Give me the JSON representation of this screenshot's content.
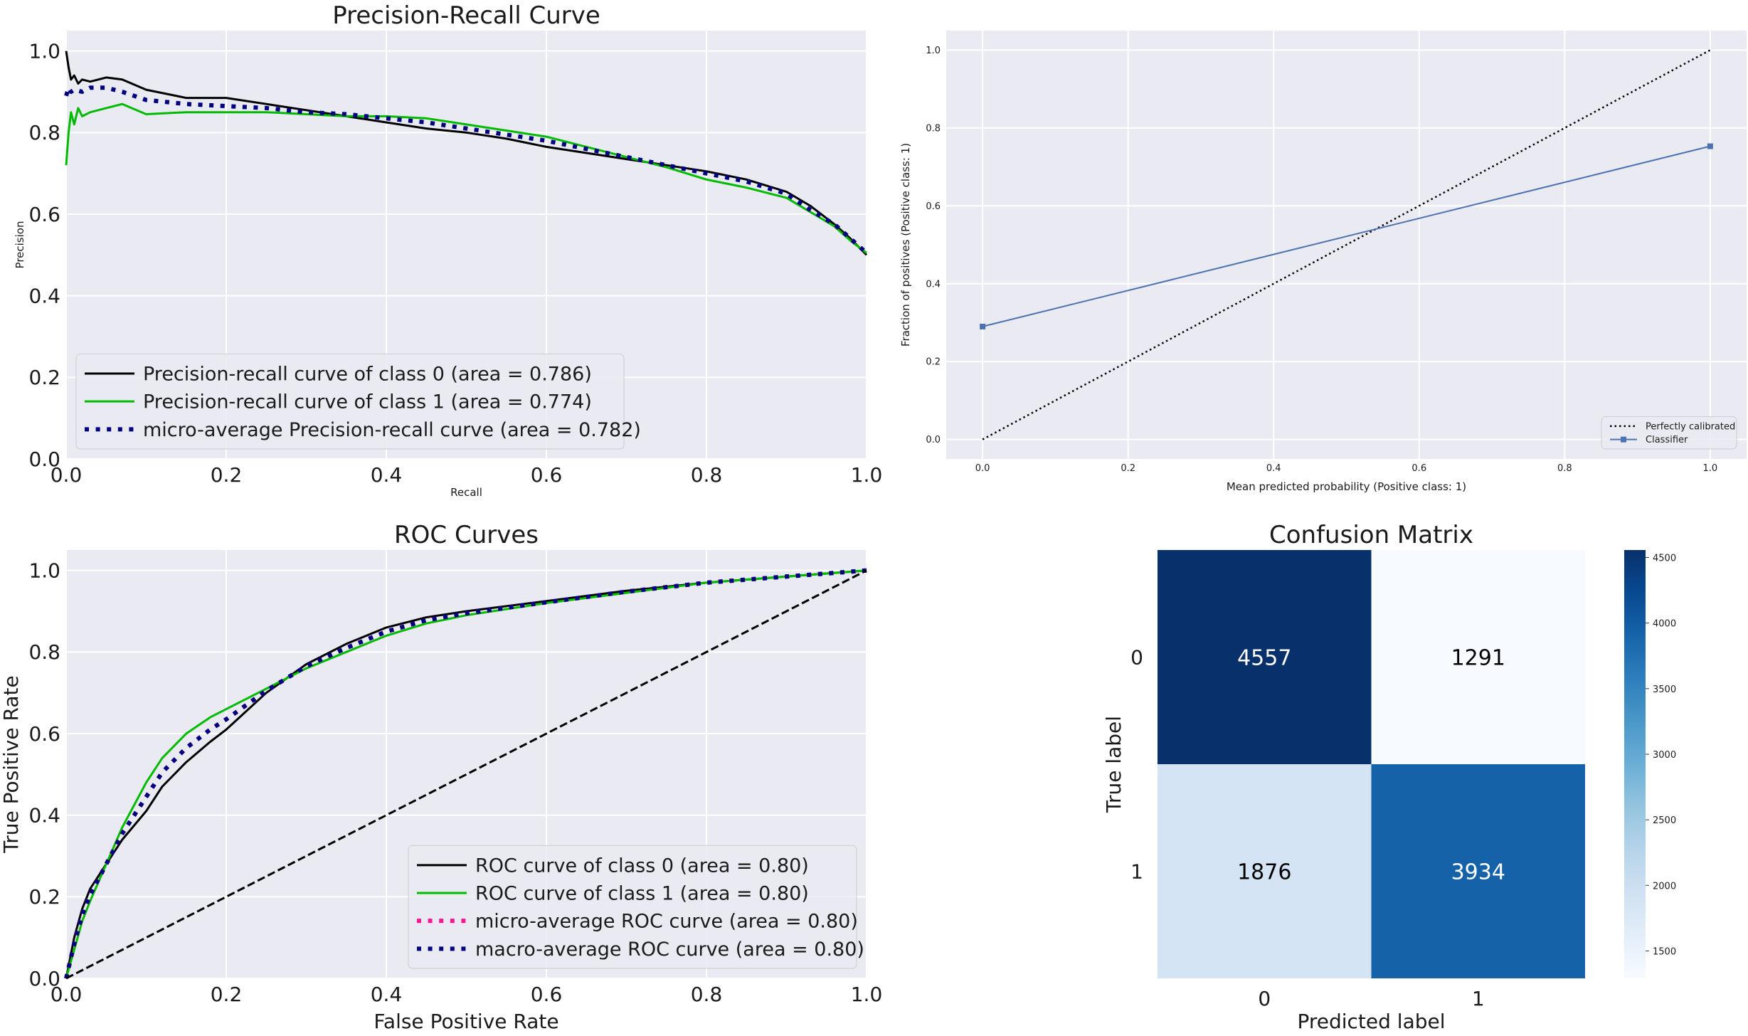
{
  "chart_data": [
    {
      "type": "line",
      "title": "Precision-Recall Curve",
      "xlabel": "Recall",
      "ylabel": "Precision",
      "xlim": [
        0,
        1
      ],
      "ylim": [
        0,
        1.05
      ],
      "xticks": [
        0,
        0.2,
        0.4,
        0.6,
        0.8,
        1.0
      ],
      "yticks": [
        0,
        0.2,
        0.4,
        0.6,
        0.8,
        1.0
      ],
      "grid": true,
      "legend_position": "lower-left",
      "series": [
        {
          "name": "Precision-recall curve of class 0 (area = 0.786)",
          "color": "#000000",
          "style": "solid",
          "x": [
            0,
            0.003,
            0.006,
            0.01,
            0.015,
            0.02,
            0.03,
            0.05,
            0.07,
            0.1,
            0.15,
            0.2,
            0.25,
            0.3,
            0.35,
            0.4,
            0.45,
            0.5,
            0.55,
            0.6,
            0.65,
            0.7,
            0.75,
            0.8,
            0.85,
            0.9,
            0.93,
            0.96,
            0.98,
            1.0
          ],
          "y": [
            1.0,
            0.96,
            0.93,
            0.94,
            0.92,
            0.93,
            0.925,
            0.935,
            0.93,
            0.905,
            0.885,
            0.885,
            0.87,
            0.855,
            0.84,
            0.825,
            0.81,
            0.8,
            0.785,
            0.765,
            0.75,
            0.735,
            0.72,
            0.705,
            0.685,
            0.655,
            0.62,
            0.575,
            0.54,
            0.5
          ]
        },
        {
          "name": "Precision-recall curve of class 1 (area = 0.774)",
          "color": "#00bb00",
          "style": "solid",
          "x": [
            0,
            0.003,
            0.006,
            0.01,
            0.015,
            0.02,
            0.03,
            0.05,
            0.07,
            0.1,
            0.15,
            0.2,
            0.25,
            0.3,
            0.35,
            0.4,
            0.45,
            0.5,
            0.55,
            0.6,
            0.65,
            0.7,
            0.75,
            0.8,
            0.85,
            0.9,
            0.93,
            0.96,
            0.98,
            1.0
          ],
          "y": [
            0.72,
            0.8,
            0.85,
            0.82,
            0.86,
            0.84,
            0.85,
            0.86,
            0.87,
            0.845,
            0.85,
            0.85,
            0.85,
            0.845,
            0.84,
            0.84,
            0.835,
            0.82,
            0.805,
            0.79,
            0.765,
            0.74,
            0.715,
            0.685,
            0.665,
            0.64,
            0.605,
            0.57,
            0.535,
            0.505
          ]
        },
        {
          "name": "micro-average Precision-recall curve (area = 0.782)",
          "color": "#000080",
          "style": "dotted",
          "x": [
            0,
            0.003,
            0.006,
            0.01,
            0.02,
            0.03,
            0.05,
            0.07,
            0.1,
            0.15,
            0.2,
            0.25,
            0.3,
            0.35,
            0.4,
            0.45,
            0.5,
            0.55,
            0.6,
            0.65,
            0.7,
            0.75,
            0.8,
            0.85,
            0.9,
            0.93,
            0.96,
            0.98,
            1.0
          ],
          "y": [
            0.89,
            0.91,
            0.9,
            0.905,
            0.9,
            0.91,
            0.91,
            0.9,
            0.88,
            0.87,
            0.865,
            0.86,
            0.85,
            0.845,
            0.835,
            0.825,
            0.81,
            0.795,
            0.78,
            0.76,
            0.74,
            0.72,
            0.7,
            0.68,
            0.65,
            0.61,
            0.575,
            0.54,
            0.505
          ]
        }
      ]
    },
    {
      "type": "line",
      "title": "",
      "xlabel": "Mean predicted probability (Positive class: 1)",
      "ylabel": "Fraction of positives (Positive class: 1)",
      "xlim": [
        -0.05,
        1.05
      ],
      "ylim": [
        -0.05,
        1.05
      ],
      "xticks": [
        0.0,
        0.2,
        0.4,
        0.6,
        0.8,
        1.0
      ],
      "yticks": [
        0.0,
        0.2,
        0.4,
        0.6,
        0.8,
        1.0
      ],
      "grid": true,
      "legend_position": "lower-right",
      "series": [
        {
          "name": "Perfectly calibrated",
          "color": "#000000",
          "style": "dotted",
          "x": [
            0,
            1
          ],
          "y": [
            0,
            1
          ]
        },
        {
          "name": "Classifier",
          "color": "#4c72b0",
          "style": "solid",
          "marker": "square",
          "x": [
            0.0,
            1.0
          ],
          "y": [
            0.29,
            0.753
          ]
        }
      ]
    },
    {
      "type": "line",
      "title": "ROC Curves",
      "xlabel": "False Positive Rate",
      "ylabel": "True Positive Rate",
      "xlim": [
        0,
        1
      ],
      "ylim": [
        0,
        1.05
      ],
      "xticks": [
        0,
        0.2,
        0.4,
        0.6,
        0.8,
        1.0
      ],
      "yticks": [
        0,
        0.2,
        0.4,
        0.6,
        0.8,
        1.0
      ],
      "grid": true,
      "legend_position": "lower-right",
      "series": [
        {
          "name": "ROC curve of class 0 (area = 0.80)",
          "color": "#000000",
          "style": "solid",
          "x": [
            0,
            0.01,
            0.02,
            0.03,
            0.05,
            0.07,
            0.1,
            0.12,
            0.15,
            0.18,
            0.2,
            0.25,
            0.3,
            0.35,
            0.4,
            0.45,
            0.5,
            0.6,
            0.7,
            0.8,
            0.9,
            1.0
          ],
          "y": [
            0,
            0.1,
            0.17,
            0.22,
            0.28,
            0.34,
            0.41,
            0.47,
            0.53,
            0.58,
            0.61,
            0.7,
            0.77,
            0.82,
            0.86,
            0.885,
            0.9,
            0.925,
            0.95,
            0.97,
            0.985,
            1.0
          ]
        },
        {
          "name": "ROC curve of class 1 (area = 0.80)",
          "color": "#00bb00",
          "style": "solid",
          "x": [
            0,
            0.01,
            0.02,
            0.03,
            0.05,
            0.07,
            0.1,
            0.12,
            0.15,
            0.18,
            0.2,
            0.25,
            0.3,
            0.35,
            0.4,
            0.45,
            0.5,
            0.6,
            0.7,
            0.8,
            0.9,
            1.0
          ],
          "y": [
            0,
            0.07,
            0.14,
            0.19,
            0.28,
            0.37,
            0.48,
            0.54,
            0.6,
            0.64,
            0.66,
            0.71,
            0.76,
            0.8,
            0.84,
            0.87,
            0.89,
            0.92,
            0.945,
            0.97,
            0.985,
            1.0
          ]
        },
        {
          "name": "micro-average ROC curve (area = 0.80)",
          "color": "#ff1493",
          "style": "dotted",
          "x": [
            0,
            0.01,
            0.02,
            0.03,
            0.05,
            0.07,
            0.1,
            0.12,
            0.15,
            0.18,
            0.2,
            0.25,
            0.3,
            0.35,
            0.4,
            0.45,
            0.5,
            0.6,
            0.7,
            0.8,
            0.9,
            1.0
          ],
          "y": [
            0,
            0.085,
            0.155,
            0.205,
            0.28,
            0.355,
            0.445,
            0.505,
            0.565,
            0.61,
            0.635,
            0.705,
            0.765,
            0.81,
            0.85,
            0.878,
            0.895,
            0.922,
            0.948,
            0.97,
            0.985,
            1.0
          ]
        },
        {
          "name": "macro-average ROC curve (area = 0.80)",
          "color": "#000080",
          "style": "dotted",
          "x": [
            0,
            0.01,
            0.02,
            0.03,
            0.05,
            0.07,
            0.1,
            0.12,
            0.15,
            0.18,
            0.2,
            0.25,
            0.3,
            0.35,
            0.4,
            0.45,
            0.5,
            0.6,
            0.7,
            0.8,
            0.9,
            1.0
          ],
          "y": [
            0,
            0.085,
            0.155,
            0.205,
            0.28,
            0.355,
            0.445,
            0.505,
            0.565,
            0.61,
            0.635,
            0.705,
            0.765,
            0.81,
            0.85,
            0.878,
            0.895,
            0.922,
            0.948,
            0.97,
            0.985,
            1.0
          ]
        },
        {
          "name": "",
          "color": "#000000",
          "style": "dashed",
          "x": [
            0,
            1
          ],
          "y": [
            0,
            1
          ]
        }
      ]
    },
    {
      "type": "heatmap",
      "title": "Confusion Matrix",
      "xlabel": "Predicted label",
      "ylabel": "True label",
      "x_categories": [
        "0",
        "1"
      ],
      "y_categories": [
        "0",
        "1"
      ],
      "values": [
        [
          4557,
          1291
        ],
        [
          1876,
          3934
        ]
      ],
      "colormap": "Blues",
      "colorbar_range": [
        1291,
        4557
      ],
      "colorbar_ticks": [
        1500,
        2000,
        2500,
        3000,
        3500,
        4000,
        4500
      ]
    }
  ]
}
